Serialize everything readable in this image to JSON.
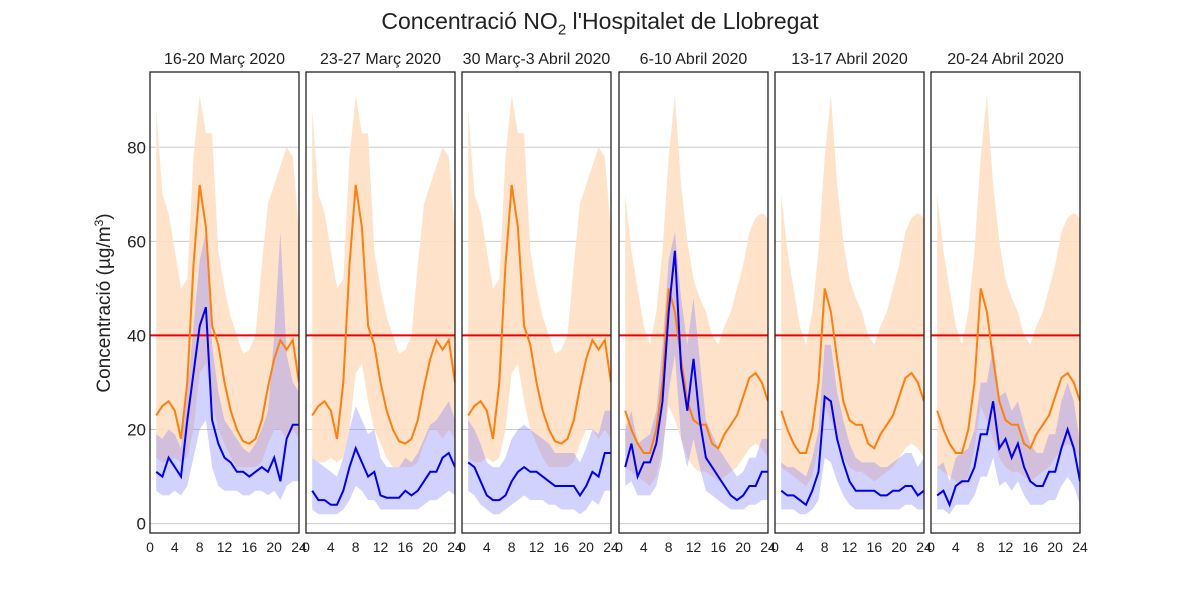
{
  "chart_data": {
    "type": "line",
    "title_prefix": "Concentració NO",
    "title_sub": "2",
    "title_suffix": " l'Hospitalet de Llobregat",
    "ylabel_main": "Concentració (µg/m",
    "ylabel_sup": "3",
    "ylabel_end": ")",
    "ylim": [
      -2,
      96
    ],
    "yticks": [
      0,
      20,
      40,
      60,
      80
    ],
    "xlim": [
      0,
      24
    ],
    "xticks": [
      0,
      4,
      8,
      12,
      16,
      20,
      24
    ],
    "grid": "horizontal",
    "limit_value": 40,
    "colors": {
      "orange_line": "#ff7f0e",
      "orange_band": "#ffdfc4",
      "blue_line": "#0000ee",
      "blue_band": "#c4c4ff",
      "overlap_band": "#c9a8c8",
      "limit_line": "#ee0000",
      "grid": "#cccccc"
    },
    "panels": [
      {
        "title": "16-20 Març 2020",
        "hours": [
          1,
          2,
          3,
          4,
          5,
          6,
          7,
          8,
          9,
          10,
          11,
          12,
          13,
          14,
          15,
          16,
          17,
          18,
          19,
          20,
          21,
          22,
          23,
          24
        ],
        "orange": [
          23,
          25,
          26,
          24,
          18,
          30,
          55,
          72,
          63,
          42,
          38,
          30,
          24,
          20,
          17.5,
          17,
          18,
          22,
          29,
          35,
          39,
          37,
          39,
          30
        ],
        "orange_low": [
          14,
          13,
          13,
          14,
          13,
          14,
          20,
          32,
          34,
          26,
          20,
          17,
          14,
          12,
          12,
          12,
          12,
          13,
          17,
          20,
          20,
          18,
          20,
          18
        ],
        "orange_high": [
          88,
          70,
          66,
          58,
          50,
          52,
          78,
          91,
          83,
          83,
          58,
          50,
          44,
          40,
          36,
          37,
          40,
          55,
          68,
          72,
          76,
          80,
          78,
          62
        ],
        "blue": [
          11,
          10,
          14,
          12,
          10,
          22,
          32,
          42,
          46,
          22,
          17,
          14,
          13,
          11,
          11,
          10,
          11,
          12,
          11,
          14,
          9,
          18,
          21,
          21
        ],
        "blue_low": [
          7,
          6,
          6,
          7,
          6,
          8,
          14,
          20,
          22,
          12,
          8,
          7,
          7,
          7,
          6,
          6,
          7,
          7,
          6,
          7,
          5,
          8,
          9,
          9
        ],
        "blue_high": [
          19,
          18,
          20,
          19,
          16,
          28,
          42,
          56,
          62,
          38,
          28,
          22,
          20,
          18,
          16,
          15,
          17,
          20,
          24,
          40,
          62,
          36,
          30,
          28
        ]
      },
      {
        "title": "23-27 Març 2020",
        "hours": [
          1,
          2,
          3,
          4,
          5,
          6,
          7,
          8,
          9,
          10,
          11,
          12,
          13,
          14,
          15,
          16,
          17,
          18,
          19,
          20,
          21,
          22,
          23,
          24
        ],
        "orange": [
          23,
          25,
          26,
          24,
          18,
          30,
          55,
          72,
          63,
          42,
          38,
          30,
          24,
          20,
          17.5,
          17,
          18,
          22,
          29,
          35,
          39,
          37,
          39,
          30
        ],
        "orange_low": [
          14,
          13,
          13,
          14,
          13,
          14,
          20,
          32,
          34,
          26,
          20,
          17,
          14,
          12,
          12,
          12,
          12,
          13,
          17,
          20,
          20,
          18,
          20,
          18
        ],
        "orange_high": [
          88,
          70,
          66,
          58,
          50,
          52,
          78,
          91,
          83,
          83,
          58,
          50,
          44,
          40,
          36,
          37,
          40,
          55,
          68,
          72,
          76,
          80,
          78,
          62
        ],
        "blue": [
          7,
          5,
          5,
          4,
          4,
          7,
          12,
          16,
          13,
          10,
          11,
          6,
          5.5,
          5.5,
          5.5,
          7,
          6,
          7,
          9,
          11,
          11,
          14,
          15,
          12
        ],
        "blue_low": [
          3,
          2,
          2,
          2,
          2,
          3,
          5,
          8,
          7,
          5,
          5,
          3,
          3,
          3,
          3,
          3,
          3,
          3,
          4,
          5,
          5,
          6,
          7,
          6
        ],
        "blue_high": [
          14,
          13,
          12,
          11,
          10,
          14,
          20,
          25,
          22,
          19,
          20,
          14,
          12,
          12,
          12,
          14,
          13,
          15,
          18,
          21,
          22,
          24,
          26,
          22
        ]
      },
      {
        "title": "30 Març-3 Abril 2020",
        "hours": [
          1,
          2,
          3,
          4,
          5,
          6,
          7,
          8,
          9,
          10,
          11,
          12,
          13,
          14,
          15,
          16,
          17,
          18,
          19,
          20,
          21,
          22,
          23,
          24
        ],
        "orange": [
          23,
          25,
          26,
          24,
          18,
          30,
          55,
          72,
          63,
          42,
          38,
          30,
          24,
          20,
          17.5,
          17,
          18,
          22,
          29,
          35,
          39,
          37,
          39,
          30
        ],
        "orange_low": [
          14,
          13,
          13,
          14,
          13,
          14,
          20,
          32,
          34,
          26,
          20,
          17,
          14,
          12,
          12,
          12,
          12,
          13,
          17,
          20,
          20,
          18,
          20,
          18
        ],
        "orange_high": [
          88,
          70,
          66,
          58,
          50,
          52,
          78,
          91,
          83,
          83,
          58,
          50,
          44,
          40,
          36,
          37,
          40,
          55,
          68,
          72,
          76,
          80,
          78,
          62
        ],
        "blue": [
          13,
          12,
          9,
          6,
          5,
          5,
          6,
          9,
          11,
          12,
          11,
          11,
          10,
          9,
          8,
          8,
          8,
          8,
          6,
          8,
          11,
          10,
          15,
          15
        ],
        "blue_low": [
          7,
          6,
          4,
          3,
          2,
          2,
          3,
          4,
          5,
          6,
          5,
          5,
          5,
          4,
          4,
          3,
          3,
          3,
          2,
          3,
          5,
          4,
          7,
          7
        ],
        "blue_high": [
          22,
          20,
          17,
          13,
          12,
          12,
          14,
          18,
          20,
          21,
          20,
          19,
          18,
          17,
          15,
          15,
          15,
          15,
          13,
          16,
          20,
          19,
          24,
          24
        ]
      },
      {
        "title": "6-10 Abril 2020",
        "hours": [
          1,
          2,
          3,
          4,
          5,
          6,
          7,
          8,
          9,
          10,
          11,
          12,
          13,
          14,
          15,
          16,
          17,
          18,
          19,
          20,
          21,
          22,
          23,
          24
        ],
        "orange": [
          24,
          20,
          17,
          15,
          15,
          20,
          30,
          50,
          45,
          35,
          26,
          22,
          21,
          21,
          17,
          16,
          19,
          21,
          23,
          27,
          31,
          32,
          30,
          26
        ],
        "orange_low": [
          12,
          11,
          10,
          9,
          8,
          10,
          16,
          25,
          22,
          18,
          14,
          12,
          11,
          11,
          10,
          9,
          10,
          11,
          12,
          14,
          16,
          17,
          16,
          14
        ],
        "orange_high": [
          70,
          58,
          50,
          42,
          38,
          45,
          58,
          78,
          91,
          72,
          60,
          52,
          48,
          45,
          40,
          38,
          42,
          45,
          50,
          55,
          62,
          65,
          66,
          65
        ],
        "blue": [
          12,
          17,
          10,
          13,
          13,
          17,
          26,
          45,
          58,
          33,
          24,
          35,
          22,
          14,
          12,
          10,
          8,
          6,
          5,
          6,
          8,
          8,
          11,
          11
        ],
        "blue_low": [
          8,
          9,
          6,
          6,
          6,
          8,
          14,
          28,
          36,
          18,
          12,
          18,
          12,
          7,
          6,
          5,
          4,
          3,
          3,
          3,
          4,
          4,
          5,
          5
        ],
        "blue_high": [
          20,
          24,
          17,
          18,
          19,
          24,
          38,
          56,
          62,
          48,
          38,
          48,
          35,
          22,
          19,
          16,
          14,
          12,
          10,
          11,
          14,
          14,
          18,
          18
        ]
      },
      {
        "title": "13-17 Abril 2020",
        "hours": [
          1,
          2,
          3,
          4,
          5,
          6,
          7,
          8,
          9,
          10,
          11,
          12,
          13,
          14,
          15,
          16,
          17,
          18,
          19,
          20,
          21,
          22,
          23,
          24
        ],
        "orange": [
          24,
          20,
          17,
          15,
          15,
          20,
          30,
          50,
          45,
          35,
          26,
          22,
          21,
          21,
          17,
          16,
          19,
          21,
          23,
          27,
          31,
          32,
          30,
          26
        ],
        "orange_low": [
          12,
          11,
          10,
          9,
          8,
          10,
          16,
          25,
          22,
          18,
          14,
          12,
          11,
          11,
          10,
          9,
          10,
          11,
          12,
          14,
          16,
          17,
          16,
          14
        ],
        "orange_high": [
          70,
          58,
          50,
          42,
          38,
          45,
          58,
          78,
          91,
          72,
          60,
          52,
          48,
          45,
          40,
          38,
          42,
          45,
          50,
          55,
          62,
          65,
          66,
          65
        ],
        "blue": [
          7,
          6,
          6,
          5,
          4,
          7,
          11,
          27,
          26,
          18,
          13,
          9,
          7,
          7,
          7,
          7,
          6,
          6,
          7,
          7,
          8,
          8,
          6,
          7
        ],
        "blue_low": [
          3,
          3,
          3,
          2,
          2,
          3,
          5,
          14,
          13,
          9,
          6,
          4,
          3,
          3,
          3,
          3,
          3,
          3,
          3,
          3,
          4,
          4,
          3,
          3
        ],
        "blue_high": [
          13,
          12,
          12,
          11,
          10,
          14,
          20,
          38,
          38,
          28,
          22,
          17,
          14,
          13,
          13,
          13,
          12,
          12,
          13,
          14,
          15,
          15,
          12,
          14
        ]
      },
      {
        "title": "20-24 Abril 2020",
        "hours": [
          1,
          2,
          3,
          4,
          5,
          6,
          7,
          8,
          9,
          10,
          11,
          12,
          13,
          14,
          15,
          16,
          17,
          18,
          19,
          20,
          21,
          22,
          23,
          24
        ],
        "orange": [
          24,
          20,
          17,
          15,
          15,
          20,
          30,
          50,
          45,
          35,
          26,
          22,
          21,
          21,
          17,
          16,
          19,
          21,
          23,
          27,
          31,
          32,
          30,
          26
        ],
        "orange_low": [
          12,
          11,
          10,
          9,
          8,
          10,
          16,
          25,
          22,
          18,
          14,
          12,
          11,
          11,
          10,
          9,
          10,
          11,
          12,
          14,
          16,
          17,
          16,
          14
        ],
        "orange_high": [
          70,
          58,
          50,
          42,
          38,
          45,
          58,
          78,
          91,
          72,
          60,
          52,
          48,
          45,
          40,
          38,
          42,
          45,
          50,
          55,
          62,
          65,
          66,
          65
        ],
        "blue": [
          6,
          7,
          4,
          8,
          9,
          9,
          12,
          19,
          19,
          26,
          16,
          18,
          14,
          17,
          12,
          9,
          8,
          8,
          11,
          11,
          16,
          20,
          16,
          9
        ],
        "blue_low": [
          3,
          3,
          2,
          4,
          4,
          4,
          6,
          10,
          10,
          14,
          8,
          9,
          7,
          9,
          6,
          4,
          4,
          4,
          5,
          5,
          8,
          10,
          8,
          4
        ],
        "blue_high": [
          12,
          13,
          9,
          14,
          15,
          16,
          20,
          30,
          30,
          38,
          27,
          28,
          24,
          26,
          21,
          17,
          15,
          15,
          19,
          19,
          26,
          30,
          26,
          17
        ]
      }
    ]
  }
}
